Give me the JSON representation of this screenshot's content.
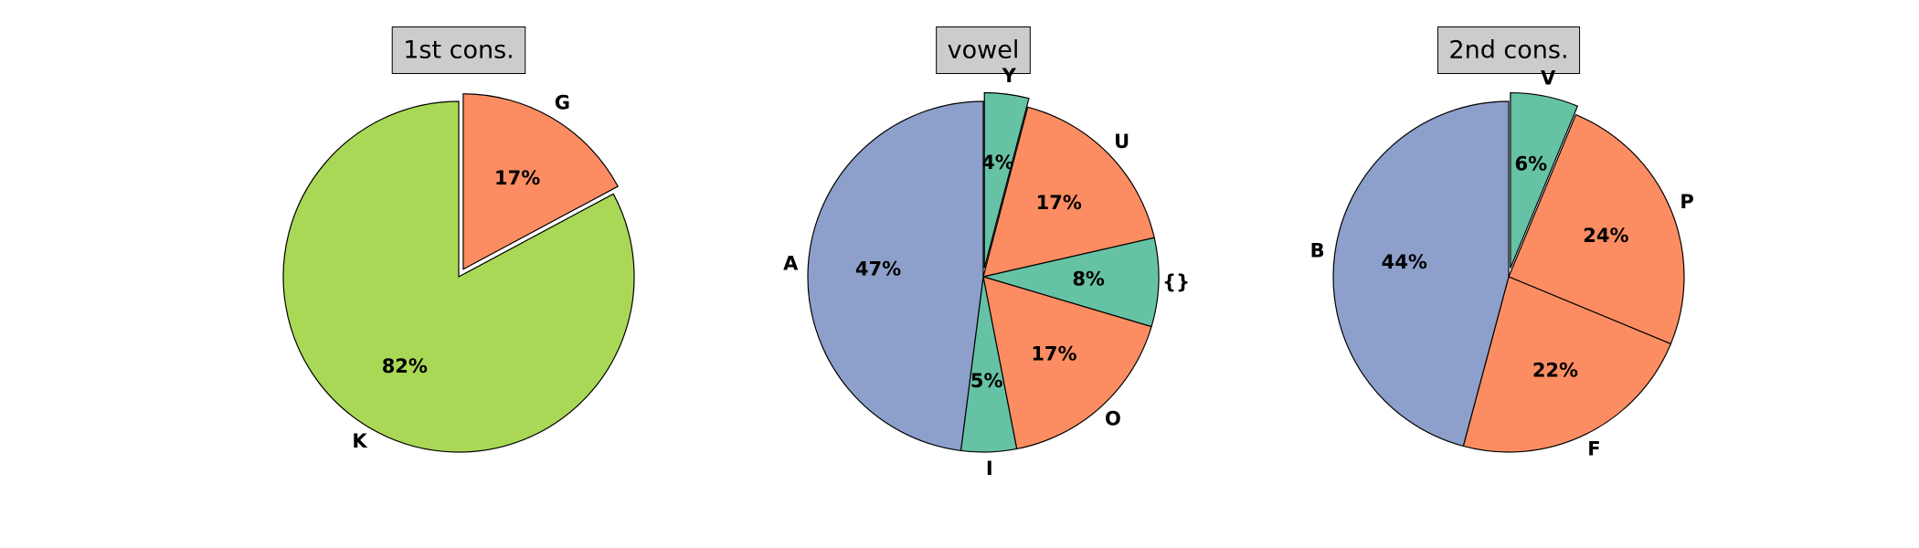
{
  "chart_data": [
    {
      "type": "pie",
      "title": "1st cons.",
      "categories": [
        "G",
        "K"
      ],
      "values": [
        17,
        82
      ],
      "value_labels": [
        "17%",
        "82%"
      ],
      "colors": [
        "#fc8d62",
        "#a9d856"
      ],
      "explode": [
        true,
        false
      ]
    },
    {
      "type": "pie",
      "title": "vowel",
      "categories": [
        "Y",
        "U",
        "{}",
        "O",
        "I",
        "A"
      ],
      "values": [
        4,
        17,
        8,
        17,
        5,
        47
      ],
      "value_labels": [
        "4%",
        "17%",
        "8%",
        "17%",
        "5%",
        "47%"
      ],
      "colors": [
        "#66c2a5",
        "#fc8d62",
        "#66c2a5",
        "#fc8d62",
        "#66c2a5",
        "#8da0cb"
      ],
      "explode": [
        true,
        false,
        false,
        false,
        false,
        false
      ]
    },
    {
      "type": "pie",
      "title": "2nd cons.",
      "categories": [
        "V",
        "P",
        "F",
        "B"
      ],
      "values": [
        6,
        24,
        22,
        44
      ],
      "value_labels": [
        "6%",
        "24%",
        "22%",
        "44%"
      ],
      "colors": [
        "#66c2a5",
        "#fc8d62",
        "#fc8d62",
        "#8da0cb"
      ],
      "explode": [
        true,
        false,
        false,
        false
      ]
    }
  ]
}
